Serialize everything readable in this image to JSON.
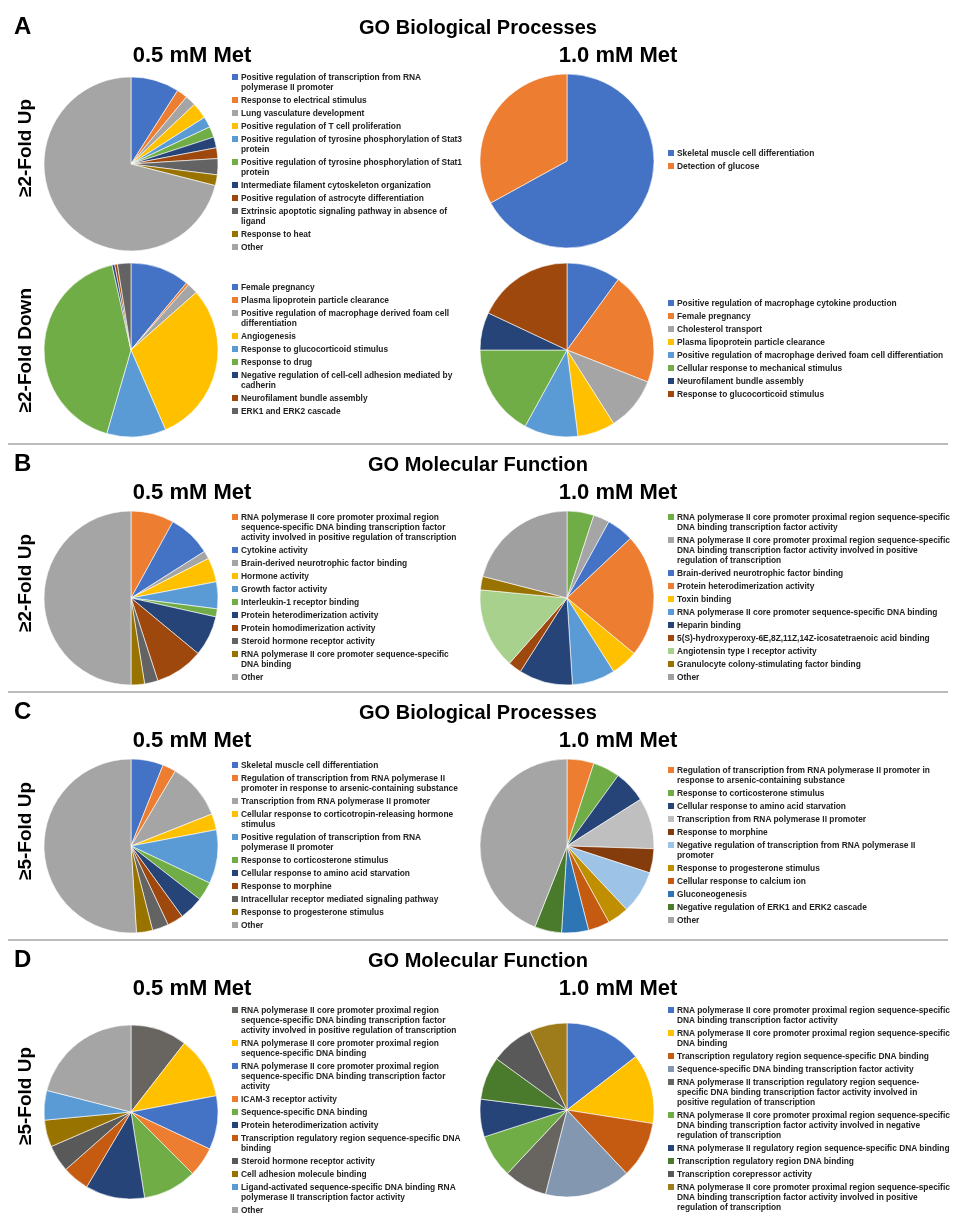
{
  "chart_data": [
    {
      "type": "pie",
      "title": "0.5 mM Met",
      "legend": "right",
      "annotations": [
        "A",
        "GO Biological Processes",
        "≥2-Fold Up"
      ],
      "categories": [
        "Positive regulation of transcription from RNA polymerase II promoter",
        "Response to electrical stimulus",
        "Lung vasculature development",
        "Positive regulation of T cell proliferation",
        "Positive regulation of tyrosine phosphorylation of Stat3 protein",
        "Positive regulation of tyrosine phosphorylation of Stat1 protein",
        "Intermediate filament cytoskeleton organization",
        "Positive regulation of astrocyte differentiation",
        "Extrinsic apoptotic signaling pathway in absence of ligand",
        "Response to heat",
        "Other"
      ],
      "values": [
        9,
        2,
        2,
        3,
        2,
        2,
        2,
        2,
        3,
        2,
        71
      ],
      "colors": [
        "#4472c4",
        "#ed7d31",
        "#a5a5a5",
        "#ffc000",
        "#5b9bd5",
        "#70ad47",
        "#264478",
        "#9e480e",
        "#636363",
        "#997300",
        "#a5a5a5"
      ]
    },
    {
      "type": "pie",
      "title": "1.0 mM Met",
      "legend": "right",
      "categories": [
        "Skeletal muscle cell differentiation",
        "Detection of glucose"
      ],
      "values": [
        67,
        33
      ],
      "colors": [
        "#4472c4",
        "#ed7d31"
      ]
    },
    {
      "type": "pie",
      "legend": "right",
      "annotations": [
        "≥2-Fold Down"
      ],
      "categories": [
        "Female pregnancy",
        "Plasma lipoprotein particle clearance",
        "Positive regulation of macrophage derived foam cell differentiation",
        "Angiogenesis",
        "Response to glucocorticoid stimulus",
        "Response to drug",
        "Negative regulation of cell-cell adhesion mediated by cadherin",
        "Neurofilament bundle assembly",
        "ERK1 and ERK2 cascade"
      ],
      "values": [
        11,
        0.5,
        2,
        30,
        11,
        42,
        0.5,
        0.5,
        2.5
      ],
      "colors": [
        "#4472c4",
        "#ed7d31",
        "#a5a5a5",
        "#ffc000",
        "#5b9bd5",
        "#70ad47",
        "#264478",
        "#9e480e",
        "#636363"
      ]
    },
    {
      "type": "pie",
      "legend": "right",
      "categories": [
        "Positive regulation of macrophage cytokine production",
        "Female pregnancy",
        "Cholesterol transport",
        "Plasma lipoprotein particle clearance",
        "Positive regulation of macrophage derived foam cell differentiation",
        "Cellular response to mechanical stimulus",
        "Neurofilament bundle assembly",
        "Response to glucocorticoid stimulus"
      ],
      "values": [
        10,
        21,
        10,
        7,
        10,
        17,
        7,
        18
      ],
      "colors": [
        "#4472c4",
        "#ed7d31",
        "#a5a5a5",
        "#ffc000",
        "#5b9bd5",
        "#70ad47",
        "#264478",
        "#9e480e"
      ]
    },
    {
      "type": "pie",
      "title": "0.5 mM Met",
      "legend": "right",
      "annotations": [
        "B",
        "GO Molecular Function",
        "≥2-Fold Up"
      ],
      "categories": [
        "RNA polymerase II core promoter proximal region sequence-specific DNA binding transcription factor activity involved in positive regulation of transcription",
        "Cytokine activity",
        "Brain-derived neurotrophic factor binding",
        "Hormone activity",
        "Growth factor activity",
        "Interleukin-1 receptor binding",
        "Protein heterodimerization activity",
        "Protein homodimerization activity",
        "Steroid hormone receptor activity",
        "RNA polymerase II core promoter sequence-specific DNA binding",
        "Other"
      ],
      "values": [
        8,
        8,
        1.5,
        4.5,
        5,
        1.5,
        7.5,
        9,
        2.5,
        2.5,
        50
      ],
      "colors": [
        "#ed7d31",
        "#4472c4",
        "#a5a5a5",
        "#ffc000",
        "#5b9bd5",
        "#70ad47",
        "#264478",
        "#9e480e",
        "#636363",
        "#997300",
        "#a5a5a5"
      ]
    },
    {
      "type": "pie",
      "title": "1.0 mM Met",
      "legend": "right",
      "categories": [
        "RNA polymerase II core promoter proximal region sequence-specific DNA binding transcription factor activity",
        "RNA polymerase II core promoter proximal region sequence-specific DNA binding transcription factor activity involved in positive regulation of transcription",
        "Brain-derived neurotrophic factor binding",
        "Protein heterodimerization activity",
        "Toxin binding",
        "RNA polymerase II core promoter sequence-specific DNA binding",
        "Heparin binding",
        "5(S)-hydroxyperoxy-6E,8Z,11Z,14Z-icosatetraenoic acid binding",
        "Angiotensin type I receptor activity",
        "Granulocyte colony-stimulating factor binding",
        "Other"
      ],
      "values": [
        5,
        3,
        5,
        23,
        5,
        8,
        10,
        2.5,
        15,
        2.5,
        21
      ],
      "colors": [
        "#70ad47",
        "#a5a5a5",
        "#4472c4",
        "#ed7d31",
        "#ffc000",
        "#5b9bd5",
        "#264478",
        "#9e480e",
        "#a9d18e",
        "#997300",
        "#a0a0a0"
      ]
    },
    {
      "type": "pie",
      "title": "0.5 mM Met",
      "legend": "right",
      "annotations": [
        "C",
        "GO Biological Processes",
        "≥5-Fold Up"
      ],
      "categories": [
        "Skeletal muscle cell differentiation",
        "Regulation of transcription from RNA polymerase II promoter in response to arsenic-containing substance",
        "Transcription from RNA polymerase II promoter",
        "Cellular response to corticotropin-releasing hormone stimulus",
        "Positive regulation of transcription from RNA polymerase II promoter",
        "Response to corticosterone stimulus",
        "Cellular response to amino acid starvation",
        "Response to morphine",
        "Intracellular receptor mediated signaling pathway",
        "Response to progesterone stimulus",
        "Other"
      ],
      "values": [
        6,
        2.5,
        10.5,
        3,
        10,
        3.5,
        4.5,
        3,
        3,
        3,
        51
      ],
      "colors": [
        "#4472c4",
        "#ed7d31",
        "#a5a5a5",
        "#ffc000",
        "#5b9bd5",
        "#70ad47",
        "#264478",
        "#9e480e",
        "#636363",
        "#997300",
        "#a5a5a5"
      ]
    },
    {
      "type": "pie",
      "title": "1.0 mM Met",
      "legend": "right",
      "categories": [
        "Regulation of transcription from RNA polymerase II promoter in response to arsenic-containing substance",
        "Response to corticosterone stimulus",
        "Cellular response to amino acid starvation",
        "Transcription from RNA polymerase II promoter",
        "Response to morphine",
        "Negative regulation of transcription from RNA polymerase II promoter",
        "Response to progesterone stimulus",
        "Cellular response to calcium ion",
        "Gluconeogenesis",
        "Negative regulation of ERK1 and ERK2 cascade",
        "Other"
      ],
      "values": [
        5,
        5,
        6,
        9.5,
        4.5,
        8,
        4,
        4,
        5,
        5,
        44
      ],
      "colors": [
        "#ed7d31",
        "#70ad47",
        "#264478",
        "#bfbfbf",
        "#843c0c",
        "#9dc3e6",
        "#bf8f00",
        "#c55a11",
        "#2e75b6",
        "#4a7a2c",
        "#a5a5a5"
      ]
    },
    {
      "type": "pie",
      "title": "0.5 mM Met",
      "legend": "right",
      "annotations": [
        "D",
        "GO Molecular Function",
        "≥5-Fold Up"
      ],
      "categories": [
        "RNA polymerase II core promoter proximal region sequence-specific DNA binding transcription factor activity involved in positive regulation of transcription",
        "RNA polymerase II core promoter proximal region sequence-specific DNA binding",
        "RNA polymerase II core promoter proximal region sequence-specific DNA binding transcription factor activity",
        "ICAM-3 receptor activity",
        "Sequence-specific DNA binding",
        "Protein heterodimerization activity",
        "Transcription regulatory region sequence-specific DNA binding",
        "Steroid hormone receptor activity",
        "Cell adhesion molecule binding",
        "Ligand-activated sequence-specific DNA binding RNA polymerase II transcription factor activity",
        "Other"
      ],
      "values": [
        10.5,
        11.5,
        10,
        5.5,
        10,
        11,
        5,
        5,
        5,
        5.5,
        21
      ],
      "colors": [
        "#686460",
        "#ffc000",
        "#4472c4",
        "#ed7d31",
        "#70ad47",
        "#264478",
        "#c55a11",
        "#595959",
        "#997300",
        "#5b9bd5",
        "#a5a5a5"
      ]
    },
    {
      "type": "pie",
      "title": "1.0 mM Met",
      "legend": "right",
      "categories": [
        "RNA polymerase II core promoter proximal region sequence-specific DNA binding transcription factor activity",
        "RNA polymerase II core promoter proximal region sequence-specific DNA binding",
        "Transcription regulatory region sequence-specific DNA binding",
        "Sequence-specific DNA binding transcription factor activity",
        "RNA polymerase II transcription regulatory region sequence-specific DNA binding transcription factor activity involved in positive regulation of transcription",
        "RNA polymerase II core promoter proximal region sequence-specific DNA binding transcription factor activity involved in negative regulation of transcription",
        "RNA polymerase II regulatory region sequence-specific DNA binding",
        "Transcription regulatory region DNA binding",
        "Transcription corepressor activity",
        "RNA polymerase II core promoter proximal region sequence-specific DNA binding transcription factor activity involved in positive regulation of transcription"
      ],
      "values": [
        14.5,
        13,
        10.5,
        16,
        8,
        8,
        7,
        8,
        8,
        7
      ],
      "colors": [
        "#4472c4",
        "#ffc000",
        "#c55a11",
        "#8497b0",
        "#686460",
        "#70ad47",
        "#264478",
        "#4a7a2c",
        "#595959",
        "#9e7c1b"
      ]
    }
  ]
}
